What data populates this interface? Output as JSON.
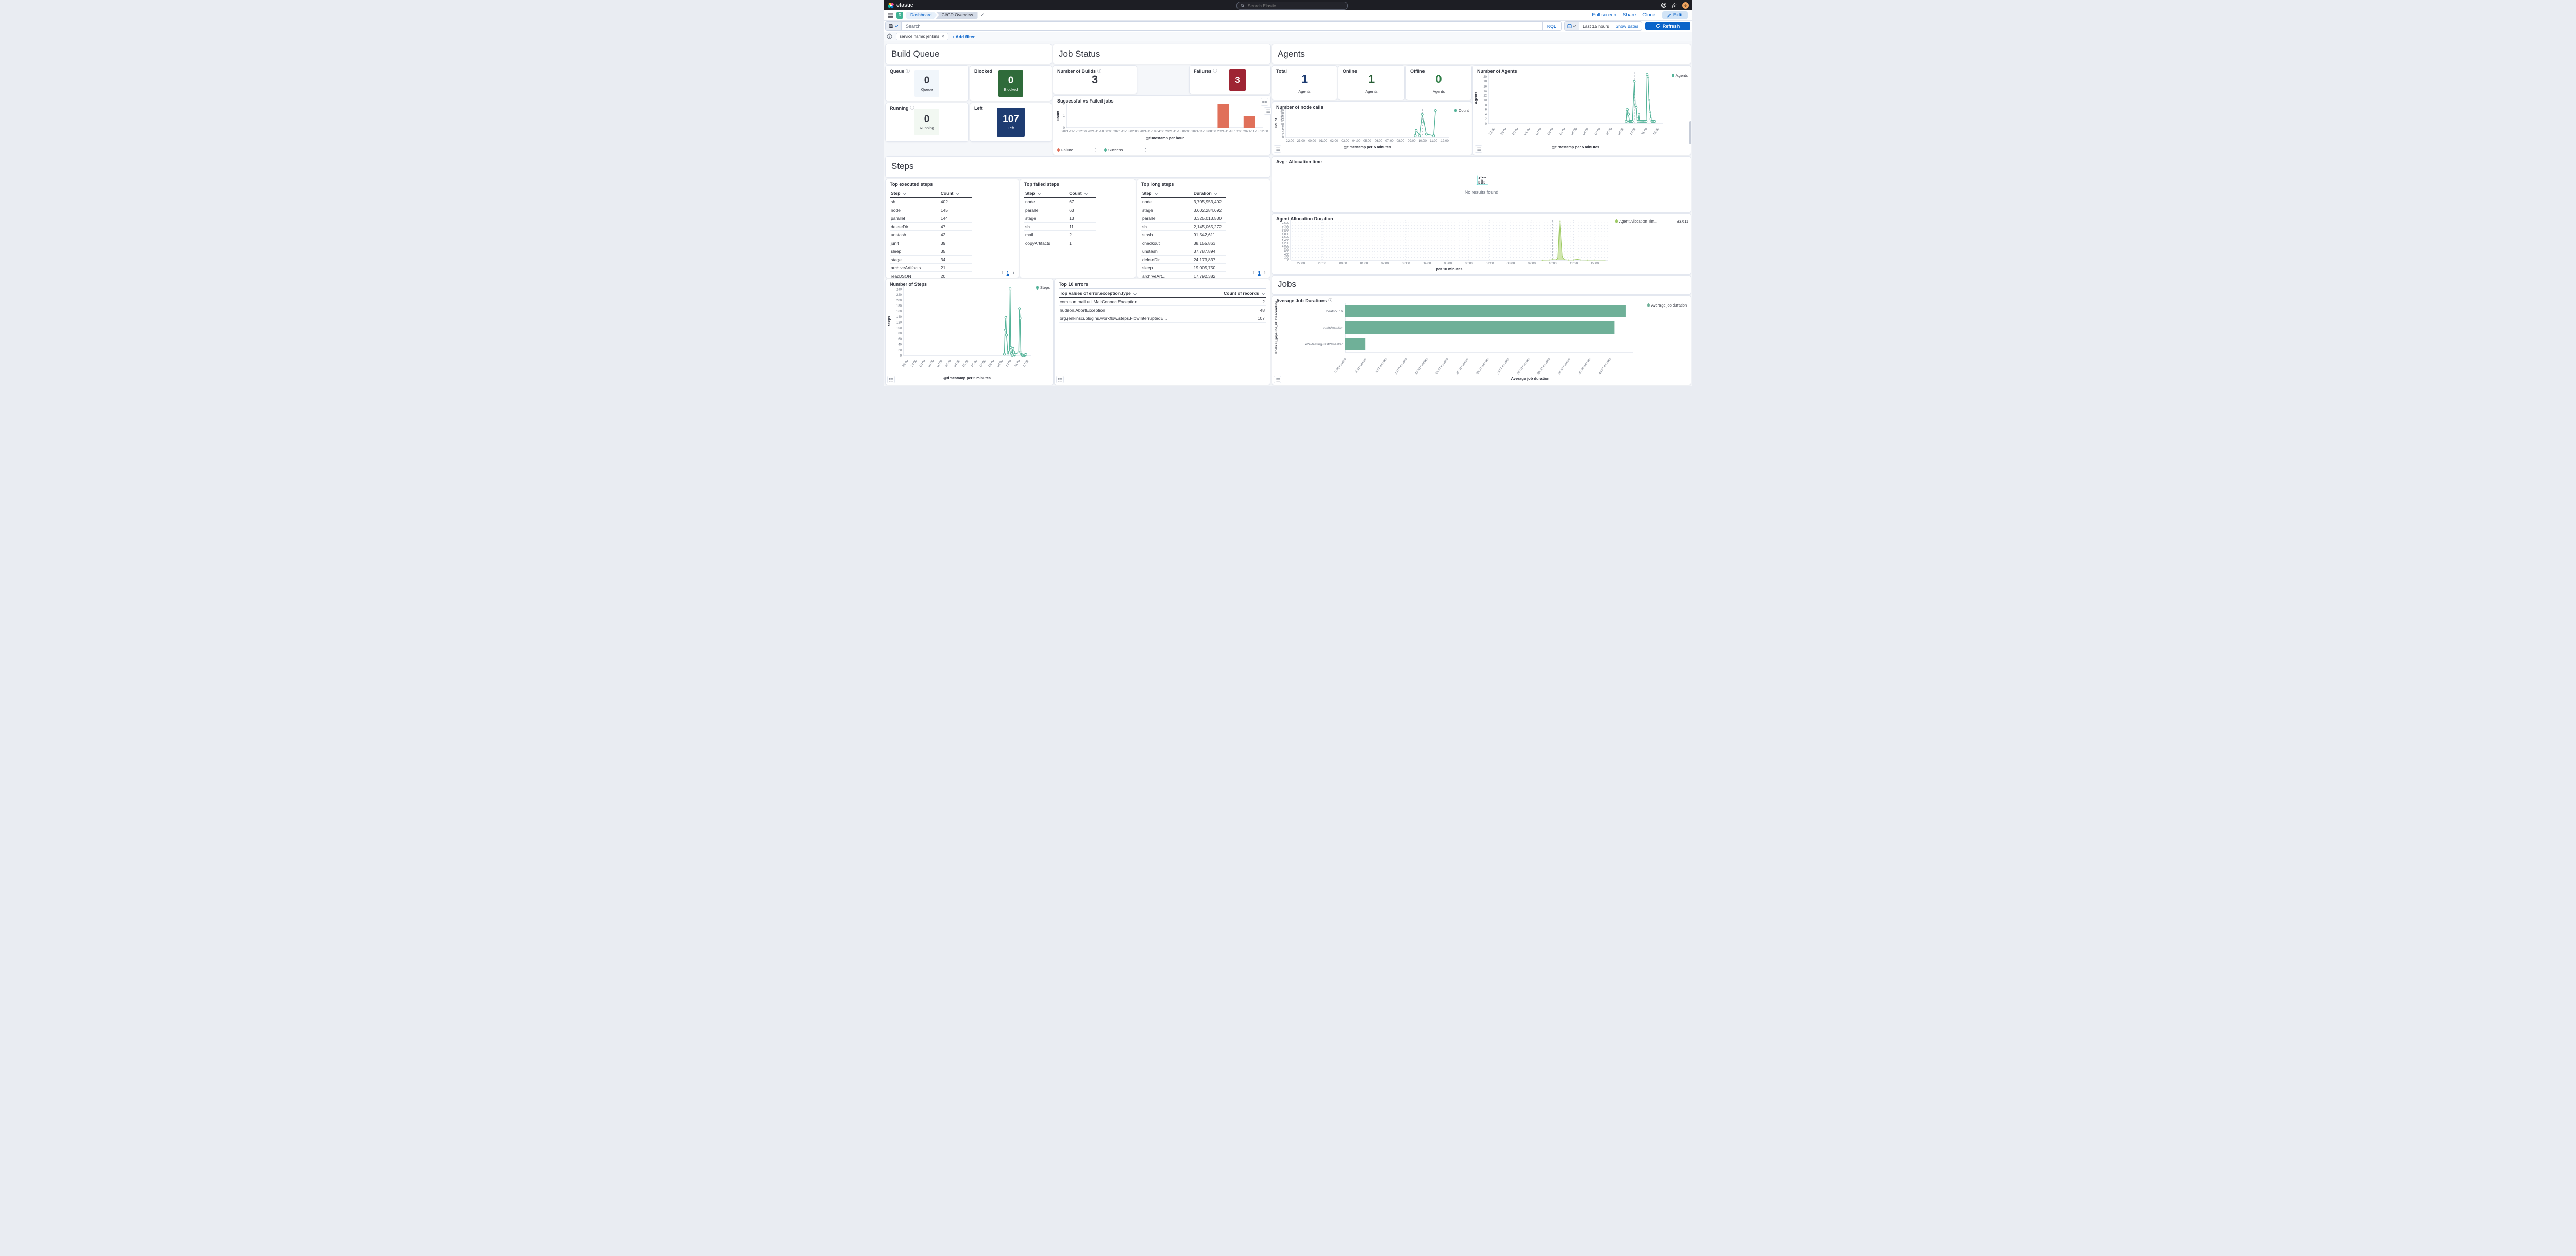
{
  "topnav": {
    "brand": "elastic",
    "search_placeholder": "Search Elastic",
    "avatar_initial": "e"
  },
  "toolbar": {
    "app_initial": "D",
    "breadcrumb_app": "Dashboard",
    "breadcrumb_page": "CI/CD Overview",
    "full_screen_label": "Full screen",
    "share_label": "Share",
    "clone_label": "Clone",
    "edit_label": "Edit"
  },
  "querybar": {
    "search_placeholder": "Search",
    "kql_label": "KQL",
    "time_range": "Last 15 hours",
    "show_dates_label": "Show dates",
    "refresh_label": "Refresh"
  },
  "filterbar": {
    "filter_pill": "service.name: jenkins",
    "add_filter_label": "+ Add filter"
  },
  "sections": {
    "build_queue_title": "Build Queue",
    "job_status_title": "Job Status",
    "agents_title": "Agents",
    "steps_title": "Steps",
    "jobs_title": "Jobs"
  },
  "metrics": {
    "queue": {
      "title": "Queue",
      "value": "0",
      "label": "Queue",
      "box_bg": "#f1f6fb",
      "text": "#343741"
    },
    "blocked": {
      "title": "Blocked",
      "value": "0",
      "label": "Blocked",
      "box_bg": "#2f6b3a",
      "text": "#ffffff"
    },
    "running": {
      "title": "Running",
      "value": "0",
      "label": "Running",
      "box_bg": "#f2f8f2",
      "text": "#343741"
    },
    "left": {
      "title": "Left",
      "value": "107",
      "label": "Left",
      "box_bg": "#1e3c72",
      "text": "#ffffff"
    },
    "builds": {
      "title": "Number of Builds",
      "value": "3"
    },
    "failures": {
      "title": "Failures",
      "value": "3",
      "box_bg": "#9e2433",
      "text": "#ffffff"
    },
    "total": {
      "title": "Total",
      "value": "1",
      "label": "Agents",
      "color": "#1e3c72"
    },
    "online": {
      "title": "Online",
      "value": "1",
      "label": "Agents",
      "color": "#265c33"
    },
    "offline": {
      "title": "Offline",
      "value": "0",
      "label": "Agents",
      "color": "#2e7d45"
    }
  },
  "tables": {
    "top_executed": {
      "title": "Top executed steps",
      "columns": [
        "Step",
        "Count"
      ],
      "rows": [
        [
          "sh",
          "402"
        ],
        [
          "node",
          "145"
        ],
        [
          "parallel",
          "144"
        ],
        [
          "deleteDir",
          "47"
        ],
        [
          "unstash",
          "42"
        ],
        [
          "junit",
          "39"
        ],
        [
          "sleep",
          "35"
        ],
        [
          "stage",
          "34"
        ],
        [
          "archiveArtifacts",
          "21"
        ],
        [
          "readJSON",
          "20"
        ]
      ],
      "pagination": "1"
    },
    "top_failed": {
      "title": "Top failed steps",
      "columns": [
        "Step",
        "Count"
      ],
      "rows": [
        [
          "node",
          "67"
        ],
        [
          "parallel",
          "63"
        ],
        [
          "stage",
          "13"
        ],
        [
          "sh",
          "11"
        ],
        [
          "mail",
          "2"
        ],
        [
          "copyArtifacts",
          "1"
        ]
      ]
    },
    "top_long": {
      "title": "Top long steps",
      "columns": [
        "Step",
        "Duration"
      ],
      "rows": [
        [
          "node",
          "3,705,953,402"
        ],
        [
          "stage",
          "3,602,284,692"
        ],
        [
          "parallel",
          "3,325,013,530"
        ],
        [
          "sh",
          "2,145,065,272"
        ],
        [
          "stash",
          "91,542,611"
        ],
        [
          "checkout",
          "38,155,863"
        ],
        [
          "unstash",
          "37,787,894"
        ],
        [
          "deleteDir",
          "24,173,837"
        ],
        [
          "sleep",
          "19,005,750"
        ],
        [
          "archiveArt...",
          "17,792,382"
        ]
      ],
      "pagination": "1"
    },
    "top_errors": {
      "title": "Top 10 errors",
      "columns": [
        "Top values of error.exception.type",
        "Count of records"
      ],
      "rows": [
        [
          "com.sun.mail.util.MailConnectException",
          "2"
        ],
        [
          "hudson.AbortException",
          "48"
        ],
        [
          "org.jenkinsci.plugins.workflow.steps.FlowInterruptedE...",
          "107"
        ]
      ]
    }
  },
  "empty_panel": {
    "title": "Avg - Allocation time",
    "message": "No results found"
  },
  "chart_data": [
    {
      "id": "successful_vs_failed",
      "type": "bar",
      "title": "Successful vs Failed jobs",
      "ylabel": "Count",
      "xlabel": "@timestamp per hour",
      "ylim": [
        0,
        2
      ],
      "yticks": [
        0,
        1,
        2
      ],
      "xticks": [
        "2021-11-17 22:00",
        "2021-11-18 00:00",
        "2021-11-18 02:00",
        "2021-11-18 04:00",
        "2021-11-18 06:00",
        "2021-11-18 08:00",
        "2021-11-18 10:00",
        "2021-11-18 12:00"
      ],
      "series": [
        {
          "name": "Failure",
          "color": "#e0705a",
          "points": [
            [
              "2021-11-18 09:00",
              2
            ],
            [
              "2021-11-18 11:00",
              1
            ]
          ]
        },
        {
          "name": "Success",
          "color": "#54b399",
          "points": []
        }
      ],
      "legend": [
        {
          "label": "Failure",
          "color": "#e0705a"
        },
        {
          "label": "Success",
          "color": "#54b399"
        }
      ],
      "legend_position": "bottom"
    },
    {
      "id": "node_calls",
      "type": "line",
      "title": "Number of node calls",
      "ylabel": "Count",
      "xlabel": "@timestamp per 5 minutes",
      "color": "#54b399",
      "ylim": [
        0,
        21
      ],
      "ytick_step": 2,
      "ytick_max": 20,
      "xticks": [
        "22:00",
        "23:00",
        "00:00",
        "01:00",
        "02:00",
        "03:00",
        "04:00",
        "05:00",
        "06:00",
        "07:00",
        "08:00",
        "09:00",
        "10:00",
        "11:00",
        "12:00"
      ],
      "points": [
        [
          "09:20",
          1
        ],
        [
          "09:25",
          5
        ],
        [
          "09:45",
          1
        ],
        [
          "10:00",
          17
        ],
        [
          "10:20",
          2
        ],
        [
          "11:00",
          1
        ],
        [
          "11:10",
          20
        ]
      ],
      "annotation_x": "10:00",
      "legend": [
        {
          "label": "Count",
          "color": "#54b399"
        }
      ]
    },
    {
      "id": "number_of_agents",
      "type": "line",
      "title": "Number of Agents",
      "ylabel": "Agents",
      "xlabel": "@timestamp per 5 minutes",
      "color": "#54b399",
      "ylim": [
        0,
        22
      ],
      "ytick_step": 2,
      "ytick_max": 20,
      "xticks": [
        "22:00",
        "23:00",
        "00:00",
        "01:00",
        "02:00",
        "03:00",
        "04:00",
        "05:00",
        "06:00",
        "07:00",
        "08:00",
        "09:00",
        "10:00",
        "11:00",
        "12:00"
      ],
      "points": [
        [
          "09:20",
          1
        ],
        [
          "09:25",
          6
        ],
        [
          "09:30",
          4
        ],
        [
          "09:35",
          1
        ],
        [
          "09:40",
          1
        ],
        [
          "09:45",
          1
        ],
        [
          "09:50",
          1
        ],
        [
          "10:00",
          18
        ],
        [
          "10:05",
          8
        ],
        [
          "10:10",
          7
        ],
        [
          "10:15",
          2
        ],
        [
          "10:20",
          1
        ],
        [
          "10:25",
          4
        ],
        [
          "10:30",
          1
        ],
        [
          "10:35",
          1
        ],
        [
          "10:40",
          1
        ],
        [
          "10:45",
          1
        ],
        [
          "10:50",
          1
        ],
        [
          "10:55",
          1
        ],
        [
          "11:00",
          1
        ],
        [
          "11:05",
          21
        ],
        [
          "11:10",
          20
        ],
        [
          "11:15",
          10
        ],
        [
          "11:20",
          5
        ],
        [
          "11:25",
          2
        ],
        [
          "11:30",
          1
        ],
        [
          "11:35",
          1
        ],
        [
          "11:40",
          1
        ],
        [
          "11:45",
          1
        ]
      ],
      "annotation_x": "10:00",
      "legend": [
        {
          "label": "Agents",
          "color": "#54b399"
        }
      ],
      "rotate_xticks": true
    },
    {
      "id": "number_of_steps",
      "type": "line",
      "title": "Number of Steps",
      "ylabel": "Steps",
      "xlabel": "@timestamp per 5 minutes",
      "color": "#54b399",
      "ylim": [
        0,
        250
      ],
      "ytick_step": 20,
      "ytick_max": 240,
      "xticks": [
        "22:00",
        "23:00",
        "00:00",
        "01:00",
        "02:00",
        "03:00",
        "04:00",
        "05:00",
        "06:00",
        "07:00",
        "08:00",
        "09:00",
        "10:00",
        "11:00",
        "12:00"
      ],
      "points": [
        [
          "09:20",
          4
        ],
        [
          "09:25",
          92
        ],
        [
          "09:30",
          138
        ],
        [
          "09:35",
          74
        ],
        [
          "09:45",
          4
        ],
        [
          "09:55",
          12
        ],
        [
          "10:00",
          241
        ],
        [
          "10:05",
          29
        ],
        [
          "10:10",
          6
        ],
        [
          "10:15",
          1
        ],
        [
          "10:20",
          26
        ],
        [
          "10:25",
          12
        ],
        [
          "10:30",
          2
        ],
        [
          "10:35",
          3
        ],
        [
          "11:00",
          12
        ],
        [
          "11:05",
          170
        ],
        [
          "11:10",
          135
        ],
        [
          "11:15",
          9
        ],
        [
          "11:20",
          3
        ],
        [
          "11:25",
          1
        ],
        [
          "11:30",
          1
        ],
        [
          "11:40",
          1
        ],
        [
          "11:45",
          2
        ],
        [
          "11:50",
          3
        ]
      ],
      "annotation_x": "10:00",
      "legend": [
        {
          "label": "Steps",
          "color": "#54b399"
        }
      ],
      "rotate_xticks": true
    },
    {
      "id": "agent_allocation_duration",
      "type": "area",
      "title": "Agent Allocation Duration",
      "xlabel": "per 10 minutes",
      "color": "#9dc964",
      "fill": "#c8e29e",
      "ylim": [
        0,
        2750
      ],
      "ytick_step": 200,
      "ytick_max": 2600,
      "xticks": [
        "22:00",
        "23:00",
        "00:00",
        "01:00",
        "02:00",
        "03:00",
        "04:00",
        "05:00",
        "06:00",
        "07:00",
        "08:00",
        "09:00",
        "10:00",
        "11:00",
        "12:00"
      ],
      "points": [
        [
          "09:30",
          5
        ],
        [
          "09:50",
          12
        ],
        [
          "10:00",
          30
        ],
        [
          "10:10",
          25
        ],
        [
          "10:15",
          150
        ],
        [
          "10:20",
          2700
        ],
        [
          "10:27",
          250
        ],
        [
          "10:33",
          30
        ],
        [
          "10:45",
          12
        ],
        [
          "11:00",
          15
        ],
        [
          "11:10",
          55
        ],
        [
          "11:20",
          15
        ],
        [
          "11:40",
          10
        ],
        [
          "12:00",
          12
        ],
        [
          "12:30",
          10
        ]
      ],
      "annotation_x": "10:00",
      "legend": [
        {
          "label": "Agent Allocation Tim...",
          "value": "33.611",
          "color": "#9dc964"
        }
      ],
      "grid": true
    },
    {
      "id": "average_job_durations",
      "type": "barh",
      "title": "Average Job Durations",
      "ylabel": "labels.ci_pipeline_id: Descending",
      "xlabel": "Average job duration",
      "color": "#6fb098",
      "categories": [
        "beats/7.16",
        "beats/master",
        "e2e-testing-test2/master"
      ],
      "values": [
        45.9,
        44.0,
        3.3
      ],
      "value_unit": "minutes",
      "xmax": 47,
      "xtick_values": [
        0,
        3.33,
        6.67,
        10,
        13.33,
        16.67,
        20,
        23.33,
        26.67,
        30,
        33.33,
        36.67,
        40,
        43.33
      ],
      "xticks": [
        "0.00 minutes",
        "3.33 minutes",
        "6.67 minutes",
        "10.00 minutes",
        "13.33 minutes",
        "16.67 minutes",
        "20.00 minutes",
        "23.33 minutes",
        "26.67 minutes",
        "30.00 minutes",
        "33.33 minutes",
        "36.67 minutes",
        "40.00 minutes",
        "43.33 minutes"
      ],
      "legend": [
        {
          "label": "Average job duration",
          "color": "#6fb098"
        }
      ]
    }
  ]
}
